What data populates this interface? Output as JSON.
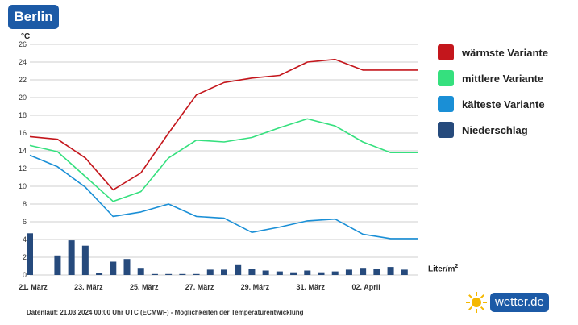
{
  "header": {
    "city": "Berlin",
    "unit": "°C"
  },
  "legend": {
    "items": [
      {
        "label": "wärmste Variante",
        "color": "#c4161c"
      },
      {
        "label": "mittlere Variante",
        "color": "#35e07e"
      },
      {
        "label": "kälteste Variante",
        "color": "#1a8fd6"
      },
      {
        "label": "Niederschlag",
        "color": "#264a7c"
      }
    ]
  },
  "precip_unit": {
    "base": "Liter/m",
    "exp": "2"
  },
  "footer": {
    "text": "Datenlauf: 21.03.2024 00:00 Uhr UTC (ECMWF) - Möglichkeiten der Temperaturentwicklung"
  },
  "logo": {
    "text": "wetter.de"
  },
  "chart_data": {
    "type": "line",
    "title": "Berlin",
    "ylabel": "°C",
    "ylim": [
      0,
      26
    ],
    "yticks": [
      0,
      2,
      4,
      6,
      8,
      10,
      12,
      14,
      16,
      18,
      20,
      22,
      24,
      26
    ],
    "xlim": [
      0,
      14
    ],
    "x_tick_labels": [
      {
        "x": 0,
        "label": "21. März"
      },
      {
        "x": 2,
        "label": "23. März"
      },
      {
        "x": 4,
        "label": "25. März"
      },
      {
        "x": 6,
        "label": "27. März"
      },
      {
        "x": 8,
        "label": "29. März"
      },
      {
        "x": 10,
        "label": "31. März"
      },
      {
        "x": 12,
        "label": "02. April"
      }
    ],
    "series": [
      {
        "name": "wärmste Variante",
        "color": "#c4161c",
        "x": [
          0,
          1,
          2,
          3,
          4,
          5,
          6,
          7,
          8,
          9,
          10,
          11,
          12,
          13,
          14
        ],
        "values": [
          15.6,
          15.3,
          13.2,
          9.6,
          11.5,
          16.0,
          20.3,
          21.7,
          22.2,
          22.5,
          24.0,
          24.3,
          23.1,
          23.1,
          23.1
        ]
      },
      {
        "name": "mittlere Variante",
        "color": "#35e07e",
        "x": [
          0,
          1,
          2,
          3,
          4,
          5,
          6,
          7,
          8,
          9,
          10,
          11,
          12,
          13,
          14
        ],
        "values": [
          14.6,
          13.9,
          11.1,
          8.3,
          9.4,
          13.2,
          15.2,
          15.0,
          15.5,
          16.6,
          17.6,
          16.8,
          15.0,
          13.8,
          13.8
        ]
      },
      {
        "name": "kälteste Variante",
        "color": "#1a8fd6",
        "x": [
          0,
          1,
          2,
          3,
          4,
          5,
          6,
          7,
          8,
          9,
          10,
          11,
          12,
          13,
          14
        ],
        "values": [
          13.5,
          12.2,
          9.9,
          6.6,
          7.1,
          8.0,
          6.6,
          6.4,
          4.8,
          5.4,
          6.1,
          6.3,
          4.6,
          4.1,
          4.1
        ]
      }
    ],
    "precipitation": {
      "name": "Niederschlag",
      "color": "#264a7c",
      "unit": "Liter/m2",
      "x": [
        0,
        1,
        1.5,
        2,
        2.5,
        3,
        3.5,
        4,
        4.5,
        5,
        5.5,
        6,
        6.5,
        7,
        7.5,
        8,
        8.5,
        9,
        9.5,
        10,
        10.5,
        11,
        11.5,
        12,
        12.5,
        13,
        13.5
      ],
      "values": [
        4.7,
        2.2,
        3.9,
        3.3,
        0.2,
        1.5,
        1.8,
        0.8,
        0.05,
        0.05,
        0.05,
        0.05,
        0.6,
        0.6,
        1.2,
        0.7,
        0.5,
        0.4,
        0.3,
        0.5,
        0.3,
        0.4,
        0.6,
        0.8,
        0.7,
        0.9,
        0.6
      ]
    }
  }
}
